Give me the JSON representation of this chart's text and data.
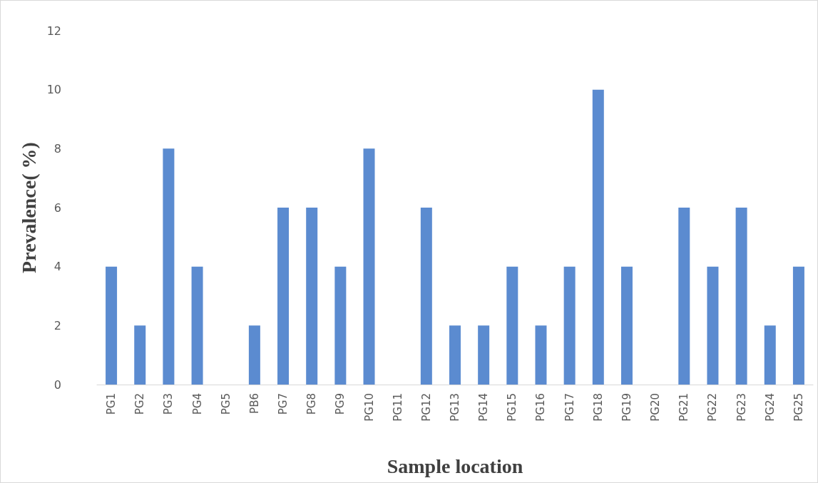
{
  "chart_data": {
    "type": "bar",
    "xlabel": "Sample location",
    "ylabel": "Prevalence( %)",
    "categories": [
      "PG1",
      "PG2",
      "PG3",
      "PG4",
      "PG5",
      "PB6",
      "PG7",
      "PG8",
      "PG9",
      "PG10",
      "PG11",
      "PG12",
      "PG13",
      "PG14",
      "PG15",
      "PG16",
      "PG17",
      "PG18",
      "PG19",
      "PG20",
      "PG21",
      "PG22",
      "PG23",
      "PG24",
      "PG25"
    ],
    "values": [
      4,
      2,
      8,
      4,
      0,
      2,
      6,
      6,
      4,
      8,
      0,
      6,
      2,
      2,
      4,
      2,
      4,
      10,
      4,
      0,
      6,
      4,
      6,
      2,
      4
    ],
    "color": "#5b8bd0",
    "ylim": [
      0,
      12
    ],
    "yticks": [
      0,
      2,
      4,
      6,
      8,
      10,
      12
    ],
    "grid": false
  }
}
